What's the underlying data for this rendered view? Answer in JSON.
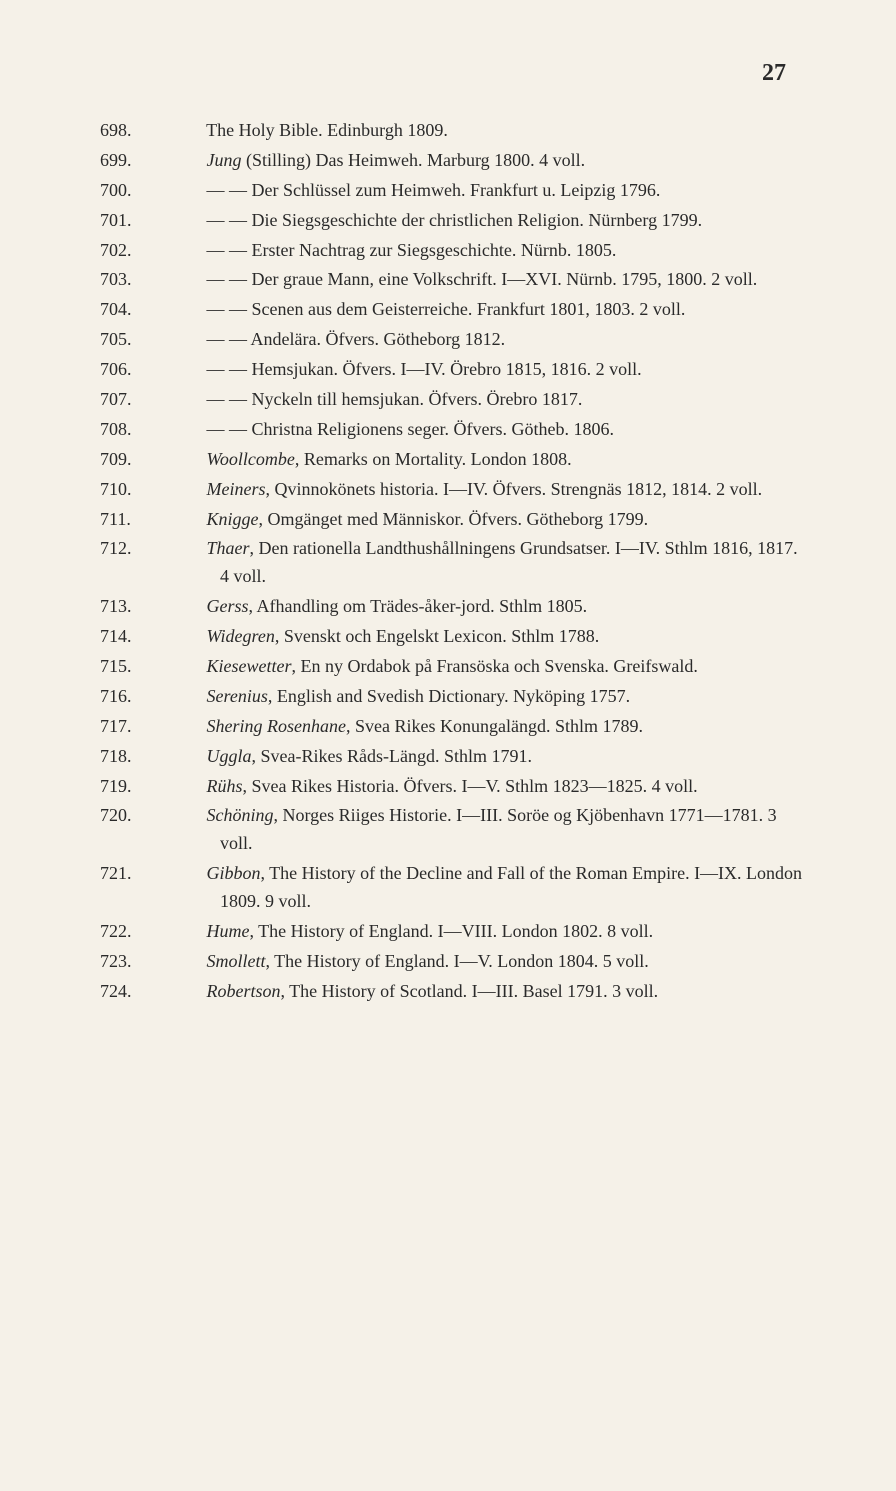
{
  "page_number": "27",
  "background_color": "#f5f1e8",
  "text_color": "#2a2a2a",
  "font_family": "Georgia, Times New Roman, serif",
  "body_fontsize": 18,
  "entries": [
    {
      "num": "698.",
      "text": "The Holy Bible.  Edinburgh 1809."
    },
    {
      "num": "699.",
      "text": "<em>Jung</em> (Stilling) Das Heimweh.  Marburg 1800.  4 voll."
    },
    {
      "num": "700.",
      "text": "— — Der Schlüssel zum Heimweh. Frankfurt u. Leipzig 1796."
    },
    {
      "num": "701.",
      "text": "— — Die Siegsgeschichte der christlichen Religion. Nürnberg 1799."
    },
    {
      "num": "702.",
      "text": "— — Erster Nachtrag zur Siegsgeschichte. Nürnb. 1805."
    },
    {
      "num": "703.",
      "text": "— — Der graue Mann, eine Volkschrift. I—XVI. Nürnb. 1795, 1800.  2 voll."
    },
    {
      "num": "704.",
      "text": "— — Scenen aus dem Geisterreiche.  Frankfurt 1801, 1803.  2 voll."
    },
    {
      "num": "705.",
      "text": "— — Andelära.  Öfvers.  Götheborg 1812."
    },
    {
      "num": "706.",
      "text": "— — Hemsjukan.  Öfvers.  I—IV.  Örebro 1815, 1816. 2 voll."
    },
    {
      "num": "707.",
      "text": "— — Nyckeln till hemsjukan.  Öfvers.  Örebro 1817."
    },
    {
      "num": "708.",
      "text": "— — Christna Religionens seger. Öfvers. Götheb. 1806."
    },
    {
      "num": "709.",
      "text": "<em>Woollcombe</em>, Remarks on Mortality.  London 1808."
    },
    {
      "num": "710.",
      "text": "<em>Meiners</em>, Qvinnokönets historia.  I—IV.  Öfvers.  Strengnäs 1812, 1814.  2 voll."
    },
    {
      "num": "711.",
      "text": "<em>Knigge</em>, Omgänget med Människor. Öfvers. Götheborg 1799."
    },
    {
      "num": "712.",
      "text": "<em>Thaer</em>, Den rationella Landthushållningens Grundsatser. I—IV.  Sthlm 1816, 1817.  4 voll."
    },
    {
      "num": "713.",
      "text": "<em>Gerss</em>, Afhandling om Trädes-åker-jord.  Sthlm 1805."
    },
    {
      "num": "714.",
      "text": "<em>Widegren</em>, Svenskt och Engelskt Lexicon.  Sthlm 1788."
    },
    {
      "num": "715.",
      "text": "<em>Kiesewetter</em>, En ny Ordabok på Fransöska och Svenska. Greifswald."
    },
    {
      "num": "716.",
      "text": "<em>Serenius</em>, English and Svedish Dictionary.  Nyköping 1757."
    },
    {
      "num": "717.",
      "text": "<em>Shering Rosenhane</em>,  Svea Rikes Konungalängd.  Sthlm 1789."
    },
    {
      "num": "718.",
      "text": "<em>Uggla</em>, Svea-Rikes Råds-Längd.  Sthlm 1791."
    },
    {
      "num": "719.",
      "text": "<em>Rühs</em>, Svea Rikes Historia. Öfvers. I—V. Sthlm 1823—1825.  4 voll."
    },
    {
      "num": "720.",
      "text": "<em>Schöning</em>, Norges Riiges Historie. I—III. Soröe og Kjöbenhavn 1771—1781.  3 voll."
    },
    {
      "num": "721.",
      "text": "<em>Gibbon</em>, The History of the Decline and Fall of the Roman Empire.  I—IX.  London 1809.  9 voll."
    },
    {
      "num": "722.",
      "text": "<em>Hume</em>, The History of England. I—VIII. London 1802. 8 voll."
    },
    {
      "num": "723.",
      "text": "<em>Smollett</em>, The History of England.  I—V.  London 1804. 5 voll."
    },
    {
      "num": "724.",
      "text": "<em>Robertson</em>, The History of Scotland. I—III. Basel 1791. 3 voll."
    }
  ]
}
